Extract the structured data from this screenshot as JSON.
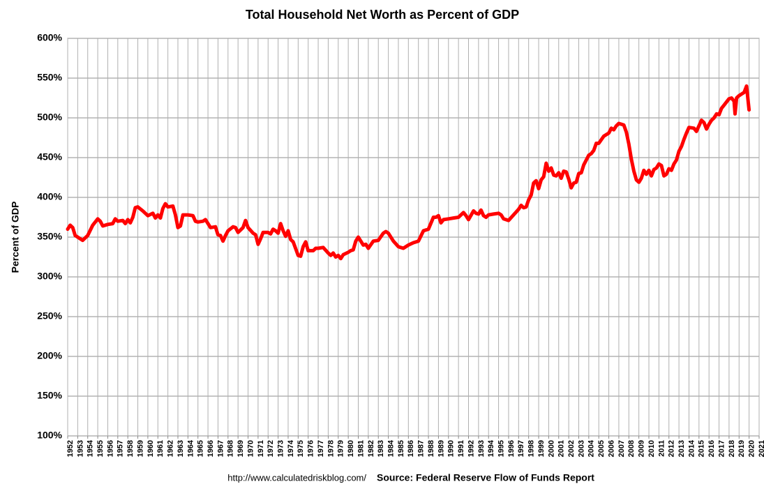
{
  "chart_data": {
    "type": "line",
    "title": "Total Household Net Worth as Percent of GDP",
    "y_label": "Percent of GDP",
    "annotations": [
      "http://www.calculatedriskblog.com/",
      "Source: Federal Reserve Flow of Funds Report"
    ],
    "grid": true,
    "xlim": [
      1952,
      2021
    ],
    "xticks": [
      1952,
      1953,
      1954,
      1955,
      1956,
      1957,
      1958,
      1959,
      1960,
      1961,
      1962,
      1963,
      1964,
      1965,
      1966,
      1967,
      1968,
      1969,
      1970,
      1971,
      1972,
      1973,
      1974,
      1975,
      1976,
      1977,
      1978,
      1979,
      1980,
      1981,
      1982,
      1983,
      1984,
      1985,
      1986,
      1987,
      1988,
      1989,
      1990,
      1991,
      1992,
      1993,
      1994,
      1995,
      1996,
      1997,
      1998,
      1999,
      2000,
      2001,
      2002,
      2003,
      2004,
      2005,
      2006,
      2007,
      2008,
      2009,
      2010,
      2011,
      2012,
      2013,
      2014,
      2015,
      2016,
      2017,
      2018,
      2019,
      2020,
      2021
    ],
    "ylim": [
      100,
      600
    ],
    "yticks": [
      {
        "value": 100,
        "label": "100%"
      },
      {
        "value": 150,
        "label": "150%"
      },
      {
        "value": 200,
        "label": "200%"
      },
      {
        "value": 250,
        "label": "250%"
      },
      {
        "value": 300,
        "label": "300%"
      },
      {
        "value": 350,
        "label": "350%"
      },
      {
        "value": 400,
        "label": "400%"
      },
      {
        "value": 450,
        "label": "450%"
      },
      {
        "value": 500,
        "label": "500%"
      },
      {
        "value": 550,
        "label": "550%"
      },
      {
        "value": 600,
        "label": "600%"
      }
    ],
    "x": [
      1952,
      1952.25,
      1952.5,
      1952.75,
      1953,
      1953.5,
      1954,
      1954.5,
      1955,
      1955.25,
      1955.5,
      1956,
      1956.5,
      1956.75,
      1957,
      1957.5,
      1957.75,
      1958,
      1958.25,
      1958.5,
      1958.75,
      1959,
      1959.5,
      1960,
      1960.5,
      1960.75,
      1961,
      1961.25,
      1961.5,
      1961.75,
      1962,
      1962.5,
      1962.75,
      1963,
      1963.25,
      1963.5,
      1964,
      1964.5,
      1964.75,
      1965,
      1965.5,
      1965.75,
      1966,
      1966.25,
      1966.75,
      1967,
      1967.25,
      1967.5,
      1967.75,
      1968,
      1968.5,
      1968.75,
      1969,
      1969.5,
      1969.75,
      1970,
      1970.5,
      1970.75,
      1971,
      1971.25,
      1971.5,
      1972,
      1972.25,
      1972.5,
      1972.75,
      1973,
      1973.25,
      1973.5,
      1973.75,
      1974,
      1974.25,
      1974.5,
      1975,
      1975.25,
      1975.5,
      1975.75,
      1976,
      1976.5,
      1976.75,
      1977,
      1977.5,
      1978,
      1978.25,
      1978.5,
      1978.75,
      1979,
      1979.25,
      1979.5,
      1980,
      1980.25,
      1980.5,
      1980.75,
      1981,
      1981.5,
      1981.75,
      1982,
      1982.5,
      1983,
      1983.5,
      1983.75,
      1984,
      1984.5,
      1985,
      1985.5,
      1986,
      1986.5,
      1987,
      1987.5,
      1988,
      1988.5,
      1988.75,
      1989,
      1989.25,
      1989.5,
      1990,
      1990.5,
      1991,
      1991.5,
      1991.75,
      1992,
      1992.5,
      1992.75,
      1993,
      1993.25,
      1993.5,
      1993.75,
      1994,
      1994.5,
      1995,
      1995.25,
      1995.5,
      1996,
      1996.5,
      1997,
      1997.25,
      1997.5,
      1997.75,
      1998,
      1998.25,
      1998.5,
      1998.75,
      1999,
      1999.25,
      1999.5,
      1999.75,
      2000,
      2000.25,
      2000.5,
      2000.75,
      2001,
      2001.25,
      2001.5,
      2001.75,
      2002,
      2002.25,
      2002.5,
      2002.75,
      2003,
      2003.25,
      2003.5,
      2004,
      2004.25,
      2004.5,
      2004.75,
      2005,
      2005.5,
      2006,
      2006.25,
      2006.5,
      2006.75,
      2007,
      2007.5,
      2007.75,
      2008,
      2008.25,
      2008.5,
      2008.75,
      2009,
      2009.25,
      2009.5,
      2009.75,
      2010,
      2010.25,
      2010.5,
      2010.75,
      2011,
      2011.25,
      2011.5,
      2011.75,
      2012,
      2012.25,
      2012.5,
      2012.75,
      2013,
      2013.25,
      2013.5,
      2013.75,
      2014,
      2014.5,
      2014.75,
      2015,
      2015.25,
      2015.5,
      2015.75,
      2016,
      2016.25,
      2016.5,
      2016.75,
      2017,
      2017.25,
      2017.5,
      2017.75,
      2018,
      2018.25,
      2018.5,
      2018.6,
      2018.75,
      2019,
      2019.25,
      2019.5,
      2019.75,
      2020
    ],
    "series": [
      {
        "name": "Household Net Worth as Percent of GDP",
        "color": "#ff0000",
        "values": [
          360,
          365,
          362,
          352,
          350,
          346,
          352,
          365,
          373,
          370,
          364,
          366,
          367,
          373,
          370,
          371,
          367,
          372,
          368,
          375,
          387,
          388,
          383,
          377,
          380,
          374,
          378,
          374,
          386,
          392,
          388,
          389,
          378,
          362,
          364,
          378,
          378,
          377,
          370,
          369,
          370,
          372,
          367,
          362,
          363,
          353,
          352,
          345,
          352,
          358,
          363,
          362,
          356,
          362,
          371,
          362,
          355,
          353,
          341,
          348,
          356,
          356,
          354,
          360,
          358,
          355,
          367,
          358,
          351,
          358,
          347,
          344,
          327,
          326,
          338,
          344,
          333,
          333,
          336,
          336,
          337,
          330,
          327,
          330,
          325,
          327,
          323,
          328,
          331,
          333,
          334,
          345,
          350,
          340,
          341,
          336,
          345,
          346,
          355,
          357,
          355,
          345,
          338,
          336,
          340,
          343,
          345,
          358,
          360,
          375,
          375,
          377,
          368,
          372,
          373,
          374,
          375,
          381,
          377,
          372,
          383,
          380,
          379,
          384,
          377,
          375,
          378,
          379,
          380,
          378,
          373,
          371,
          378,
          385,
          390,
          387,
          388,
          397,
          403,
          418,
          421,
          411,
          422,
          426,
          443,
          433,
          437,
          428,
          427,
          431,
          424,
          433,
          432,
          423,
          412,
          418,
          419,
          430,
          431,
          441,
          453,
          455,
          459,
          468,
          468,
          477,
          481,
          487,
          485,
          490,
          493,
          491,
          482,
          467,
          448,
          433,
          422,
          419,
          424,
          434,
          429,
          434,
          427,
          435,
          437,
          442,
          440,
          427,
          429,
          436,
          434,
          442,
          447,
          458,
          464,
          473,
          481,
          488,
          487,
          483,
          490,
          497,
          494,
          486,
          492,
          497,
          500,
          505,
          504,
          512,
          516,
          520,
          524,
          525,
          521,
          505,
          525,
          528,
          530,
          532,
          540,
          510
        ]
      }
    ]
  }
}
